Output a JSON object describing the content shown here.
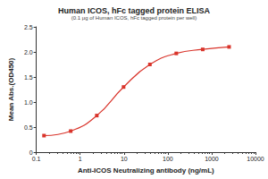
{
  "chart_data": {
    "type": "line",
    "title": "Human ICOS, hFc tagged protein ELISA",
    "subtitle": "(0.1 μg of Human ICOS, hFc tagged protein per well)",
    "x_label": "Anti-ICOS Neutralizing antibody (ng/mL)",
    "y_label": "Mean Abs.(OD450)",
    "x": [
      0.15,
      0.61,
      2.4,
      9.8,
      39,
      156,
      625,
      2500
    ],
    "values": [
      0.33,
      0.42,
      0.73,
      1.3,
      1.75,
      1.97,
      2.05,
      2.1
    ],
    "color": "#d9342b",
    "marker": "square",
    "log": "x",
    "xlim": [
      0.1,
      10000
    ],
    "xticks": [
      0.1,
      1,
      10,
      100,
      1000,
      10000
    ],
    "ylim": [
      0,
      2.5
    ],
    "yticks": [
      0,
      0.5,
      {
        "value": 1,
        "label": "1.0"
      },
      1.5,
      {
        "value": 2,
        "label": "2.0"
      },
      2.5
    ],
    "grid": false
  }
}
